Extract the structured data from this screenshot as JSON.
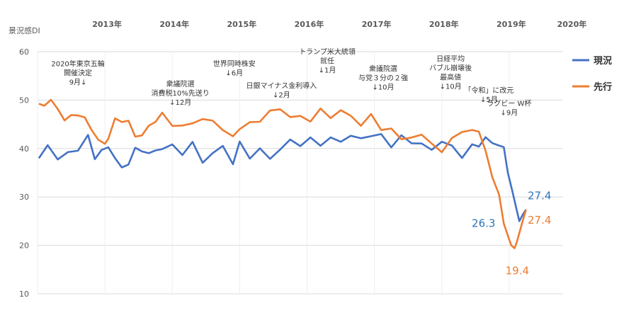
{
  "chart_data": {
    "type": "line",
    "ylabel": "景況感DI",
    "ylim": [
      10,
      60
    ],
    "yticks": [
      10,
      20,
      30,
      40,
      50,
      60
    ],
    "xlim": [
      2012.6,
      2020.4
    ],
    "year_labels": [
      {
        "label": "2013年",
        "year": 2013.0
      },
      {
        "label": "2014年",
        "year": 2014.0
      },
      {
        "label": "2015年",
        "year": 2015.0
      },
      {
        "label": "2016年",
        "year": 2016.0
      },
      {
        "label": "2017年",
        "year": 2017.0
      },
      {
        "label": "2018年",
        "year": 2018.0
      },
      {
        "label": "2019年",
        "year": 2019.0
      },
      {
        "label": "2020年",
        "year": 2019.9
      }
    ],
    "year_dividers": [
      2012.6,
      2013.6,
      2014.6,
      2015.6,
      2016.6,
      2017.6,
      2018.6,
      2019.6
    ],
    "grid": "horizontal",
    "legend": "right",
    "series": [
      {
        "name": "現況",
        "color": "#4472c4",
        "x": [
          2012.62,
          2012.75,
          2012.9,
          2013.05,
          2013.2,
          2013.35,
          2013.45,
          2013.55,
          2013.65,
          2013.75,
          2013.85,
          2013.95,
          2014.05,
          2014.15,
          2014.25,
          2014.35,
          2014.45,
          2014.6,
          2014.75,
          2014.9,
          2015.05,
          2015.2,
          2015.35,
          2015.5,
          2015.6,
          2015.75,
          2015.9,
          2016.05,
          2016.2,
          2016.35,
          2016.5,
          2016.65,
          2016.8,
          2016.95,
          2017.1,
          2017.25,
          2017.4,
          2017.55,
          2017.7,
          2017.85,
          2018.0,
          2018.15,
          2018.3,
          2018.45,
          2018.6,
          2018.75,
          2018.9,
          2019.05,
          2019.15,
          2019.25,
          2019.35,
          2019.45,
          2019.52,
          2019.58,
          2019.65,
          2019.7,
          2019.75,
          2019.8,
          2019.85
        ],
        "values": [
          38.0,
          40.8,
          39.0,
          38.5,
          40.0,
          41.5,
          38.0,
          40.0,
          40.5,
          39.0,
          35.0,
          37.0,
          39.0,
          40.0,
          39.5,
          39.8,
          40.5,
          39.5,
          39.0,
          40.5,
          38.0,
          39.5,
          40.5,
          37.0,
          40.0,
          38.5,
          39.5,
          39.0,
          40.0,
          41.5,
          40.5,
          41.0,
          41.5,
          42.0,
          42.5,
          42.5,
          41.5,
          42.5,
          42.0,
          41.5,
          42.5,
          42.0,
          40.5,
          39.0,
          41.5,
          40.0,
          39.5,
          40.5,
          41.0,
          41.5,
          40.5,
          41.0,
          40.0,
          35.0,
          31.0,
          28.0,
          25.0,
          26.3,
          27.4
        ]
      },
      {
        "name": "先行",
        "color": "#ed7d31",
        "x": [
          2012.62,
          2012.7,
          2012.8,
          2012.9,
          2013.0,
          2013.1,
          2013.2,
          2013.3,
          2013.4,
          2013.5,
          2013.6,
          2013.65,
          2013.75,
          2013.85,
          2013.95,
          2014.05,
          2014.15,
          2014.25,
          2014.35,
          2014.45,
          2014.6,
          2014.75,
          2014.9,
          2015.05,
          2015.2,
          2015.35,
          2015.5,
          2015.6,
          2015.75,
          2015.9,
          2016.05,
          2016.2,
          2016.35,
          2016.5,
          2016.65,
          2016.8,
          2016.95,
          2017.1,
          2017.25,
          2017.4,
          2017.55,
          2017.7,
          2017.85,
          2018.0,
          2018.15,
          2018.3,
          2018.45,
          2018.6,
          2018.75,
          2018.9,
          2019.05,
          2019.15,
          2019.25,
          2019.35,
          2019.45,
          2019.52,
          2019.58,
          2019.63,
          2019.68,
          2019.72,
          2019.76,
          2019.8,
          2019.85
        ],
        "values": [
          48.5,
          49.8,
          50.5,
          48.0,
          46.0,
          45.5,
          47.5,
          46.0,
          45.0,
          42.0,
          40.5,
          42.0,
          45.0,
          46.5,
          45.5,
          43.5,
          42.5,
          44.0,
          45.5,
          46.5,
          46.0,
          44.5,
          46.0,
          45.5,
          45.0,
          44.0,
          42.0,
          45.5,
          45.0,
          46.0,
          47.0,
          47.5,
          47.0,
          46.5,
          47.0,
          47.5,
          46.5,
          47.0,
          46.5,
          45.5,
          47.0,
          45.0,
          43.0,
          42.0,
          41.5,
          43.0,
          42.0,
          39.0,
          43.0,
          42.0,
          44.0,
          43.0,
          40.0,
          35.0,
          30.0,
          25.0,
          22.0,
          20.0,
          19.4,
          21.0,
          23.0,
          25.0,
          27.4
        ]
      }
    ],
    "end_labels": [
      {
        "text": "27.4",
        "x": 2020.05,
        "y": 29.5,
        "color": "#2e75b6"
      },
      {
        "text": "26.3",
        "x": 2019.22,
        "y": 23.8,
        "color": "#2e75b6"
      },
      {
        "text": "27.4",
        "x": 2020.05,
        "y": 24.5,
        "color": "#ed7d31"
      },
      {
        "text": "19.4",
        "x": 2019.72,
        "y": 14.0,
        "color": "#ed7d31"
      }
    ],
    "annotations": [
      {
        "lines": [
          "2020年東京五輪",
          "開催決定",
          "9月↓"
        ],
        "x": 2013.2,
        "y": 57.0
      },
      {
        "lines": [
          "衆議院選",
          "消費税10%先送り",
          "↓12月"
        ],
        "x": 2014.72,
        "y": 52.8
      },
      {
        "lines": [
          "世界同時株安",
          "↓6月"
        ],
        "x": 2015.52,
        "y": 57.0
      },
      {
        "lines": [
          "日銀マイナス金利導入",
          "↓2月"
        ],
        "x": 2016.22,
        "y": 52.5
      },
      {
        "lines": [
          "トランプ米大統領",
          "就任",
          "↓1月"
        ],
        "x": 2016.9,
        "y": 59.5
      },
      {
        "lines": [
          "衆議院選",
          "与党３分の２強",
          "↓10月"
        ],
        "x": 2017.73,
        "y": 56.0
      },
      {
        "lines": [
          "日経平均",
          "バブル崩壊後",
          "最高値",
          "↓10月"
        ],
        "x": 2018.73,
        "y": 58.0
      },
      {
        "lines": [
          "「令和」に改元",
          "↓5月"
        ],
        "x": 2019.3,
        "y": 51.5
      },
      {
        "lines": [
          "ラグビー W杯",
          "↓9月"
        ],
        "x": 2019.6,
        "y": 48.8
      }
    ]
  }
}
